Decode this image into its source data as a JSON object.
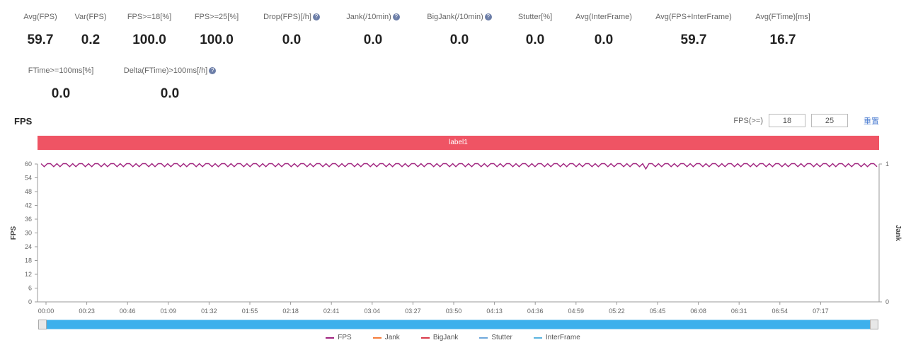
{
  "metrics": [
    {
      "id": "avg-fps",
      "label": "Avg(FPS)",
      "value": "59.7",
      "info": false
    },
    {
      "id": "var-fps",
      "label": "Var(FPS)",
      "value": "0.2",
      "info": false
    },
    {
      "id": "fps-ge-18",
      "label": "FPS>=18[%]",
      "value": "100.0",
      "info": false
    },
    {
      "id": "fps-ge-25",
      "label": "FPS>=25[%]",
      "value": "100.0",
      "info": false
    },
    {
      "id": "drop-fps",
      "label": "Drop(FPS)[/h]",
      "value": "0.0",
      "info": true
    },
    {
      "id": "jank",
      "label": "Jank(/10min)",
      "value": "0.0",
      "info": true
    },
    {
      "id": "big-jank",
      "label": "BigJank(/10min)",
      "value": "0.0",
      "info": true
    },
    {
      "id": "stutter",
      "label": "Stutter[%]",
      "value": "0.0",
      "info": false
    },
    {
      "id": "avg-interframe",
      "label": "Avg(InterFrame)",
      "value": "0.0",
      "info": false
    },
    {
      "id": "avg-fps-interframe",
      "label": "Avg(FPS+InterFrame)",
      "value": "59.7",
      "info": false
    },
    {
      "id": "avg-ftime",
      "label": "Avg(FTime)[ms]",
      "value": "16.7",
      "info": false
    },
    {
      "id": "ftime-ge-100",
      "label": "FTime>=100ms[%]",
      "value": "0.0",
      "info": false
    },
    {
      "id": "delta-ftime",
      "label": "Delta(FTime)>100ms[/h]",
      "value": "0.0",
      "info": true
    }
  ],
  "section_title": "FPS",
  "thresholds": {
    "label": "FPS(>=)",
    "value1": "18",
    "value2": "25",
    "link": "重置"
  },
  "label_bar": "label1",
  "colors": {
    "fps": "#a0237f",
    "jank": "#f57c3a",
    "bigjank": "#d93a4a",
    "stutter": "#6fa8dc",
    "interframe": "#5ab4e0",
    "label_bar": "#ef5464",
    "slider": "#3db0ec"
  },
  "chart_data": {
    "type": "line",
    "xlabel": "",
    "ylabel": "FPS",
    "ylabel_right": "Jank",
    "ylim": [
      0,
      60
    ],
    "yticks": [
      0,
      6,
      12,
      18,
      24,
      30,
      36,
      42,
      48,
      54,
      60
    ],
    "ylim_right": [
      0,
      1
    ],
    "yticks_right": [
      0,
      1
    ],
    "x_ticks": [
      "00:00",
      "00:23",
      "00:46",
      "01:09",
      "01:32",
      "01:55",
      "02:18",
      "02:41",
      "03:04",
      "03:27",
      "03:50",
      "04:13",
      "04:36",
      "04:59",
      "05:22",
      "05:45",
      "06:08",
      "06:31",
      "06:54",
      "07:17"
    ],
    "x_range_seconds": [
      0,
      473
    ],
    "series": [
      {
        "name": "FPS",
        "values_description_pattern": "oscillates 59-60",
        "values": [
          60,
          59,
          60,
          60,
          59,
          60,
          59,
          60,
          60,
          59,
          60,
          59,
          60,
          60,
          59,
          60,
          59,
          60,
          60,
          59,
          60,
          59,
          60,
          60,
          59,
          60,
          59,
          60,
          60,
          59,
          60,
          59,
          60,
          60,
          59,
          60,
          59,
          60,
          60,
          59,
          60,
          59,
          60,
          60,
          59,
          60,
          59,
          60,
          60,
          59,
          60,
          59,
          60,
          60,
          59,
          60,
          59,
          60,
          60,
          59,
          60,
          59,
          60,
          60,
          59,
          60,
          59,
          60,
          60,
          59,
          60,
          59,
          60,
          60,
          59,
          60,
          59,
          60,
          60,
          59,
          60,
          59,
          60,
          60,
          59,
          60,
          59,
          60,
          60,
          59,
          60,
          59,
          60,
          60,
          59,
          60,
          59,
          60,
          60,
          59,
          60,
          59,
          60,
          60,
          59,
          60,
          59,
          60,
          60,
          59,
          60,
          59,
          60,
          60,
          59,
          60,
          59,
          60,
          60,
          59,
          60,
          59,
          60,
          60,
          59,
          60,
          59,
          60,
          60,
          59,
          60,
          59,
          60,
          60,
          59,
          60,
          59,
          60,
          60,
          59,
          60,
          59,
          60,
          60,
          59,
          60,
          59,
          60,
          60,
          59,
          60,
          59,
          60,
          60,
          59,
          60,
          59,
          60,
          60,
          59,
          60,
          59,
          60,
          60,
          59,
          60,
          59,
          60,
          60,
          59,
          60,
          59,
          60,
          60,
          59,
          60,
          59,
          60,
          60,
          59,
          60,
          59,
          60,
          60,
          59,
          60,
          59,
          60,
          60,
          59,
          60,
          58,
          60,
          60,
          59,
          60,
          59,
          60,
          60,
          59,
          60,
          59,
          60,
          60,
          59,
          60,
          59,
          60,
          60,
          59,
          60,
          59,
          60,
          60,
          59,
          60,
          59,
          60,
          60,
          59,
          60,
          59,
          60,
          60,
          59,
          60,
          59,
          60,
          60,
          59,
          60,
          59,
          60,
          60,
          59,
          60,
          59,
          60,
          60,
          59,
          60,
          59,
          60,
          60,
          59,
          60,
          59,
          60,
          60,
          59,
          60,
          59,
          60,
          60,
          59,
          60,
          59,
          60,
          60,
          59,
          60,
          59,
          60,
          60,
          59
        ]
      },
      {
        "name": "Jank",
        "values": []
      },
      {
        "name": "BigJank",
        "values": []
      },
      {
        "name": "Stutter",
        "values": []
      },
      {
        "name": "InterFrame",
        "values": []
      }
    ],
    "legend": [
      "FPS",
      "Jank",
      "BigJank",
      "Stutter",
      "InterFrame"
    ],
    "legend_position": "bottom",
    "grid": false
  }
}
